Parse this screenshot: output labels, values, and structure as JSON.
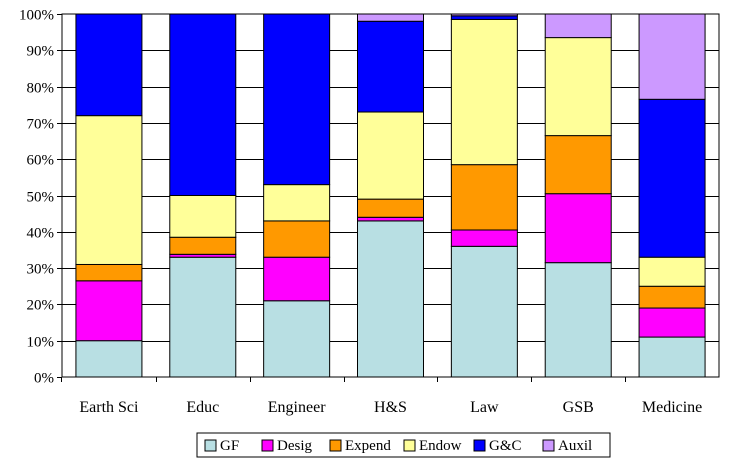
{
  "chart_data": {
    "type": "bar",
    "stacked": "percent",
    "categories": [
      "Earth Sci",
      "Educ",
      "Engineer",
      "H&S",
      "Law",
      "GSB",
      "Medicine"
    ],
    "series": [
      {
        "name": "GF",
        "color": "#b8dfe3",
        "values": [
          10,
          33,
          21,
          43,
          36,
          31.5,
          11
        ]
      },
      {
        "name": "Desig",
        "color": "#ff00ff",
        "values": [
          16.5,
          0.8,
          12,
          1,
          4.5,
          19,
          8
        ]
      },
      {
        "name": "Expend",
        "color": "#ff9900",
        "values": [
          4.5,
          4.7,
          10,
          5,
          18,
          16,
          6
        ]
      },
      {
        "name": "Endow",
        "color": "#ffff99",
        "values": [
          41,
          11.5,
          10,
          24,
          40,
          27,
          8
        ]
      },
      {
        "name": "G&C",
        "color": "#0000ff",
        "values": [
          28,
          50,
          47,
          25,
          1,
          0,
          43.5
        ]
      },
      {
        "name": "Auxil",
        "color": "#cc99ff",
        "values": [
          0,
          0,
          0,
          2,
          0.5,
          6.5,
          23.5
        ]
      }
    ],
    "ylim": [
      0,
      100
    ],
    "yticks": [
      "0%",
      "10%",
      "20%",
      "30%",
      "40%",
      "50%",
      "60%",
      "70%",
      "80%",
      "90%",
      "100%"
    ],
    "grid": true,
    "legend_position": "bottom"
  }
}
